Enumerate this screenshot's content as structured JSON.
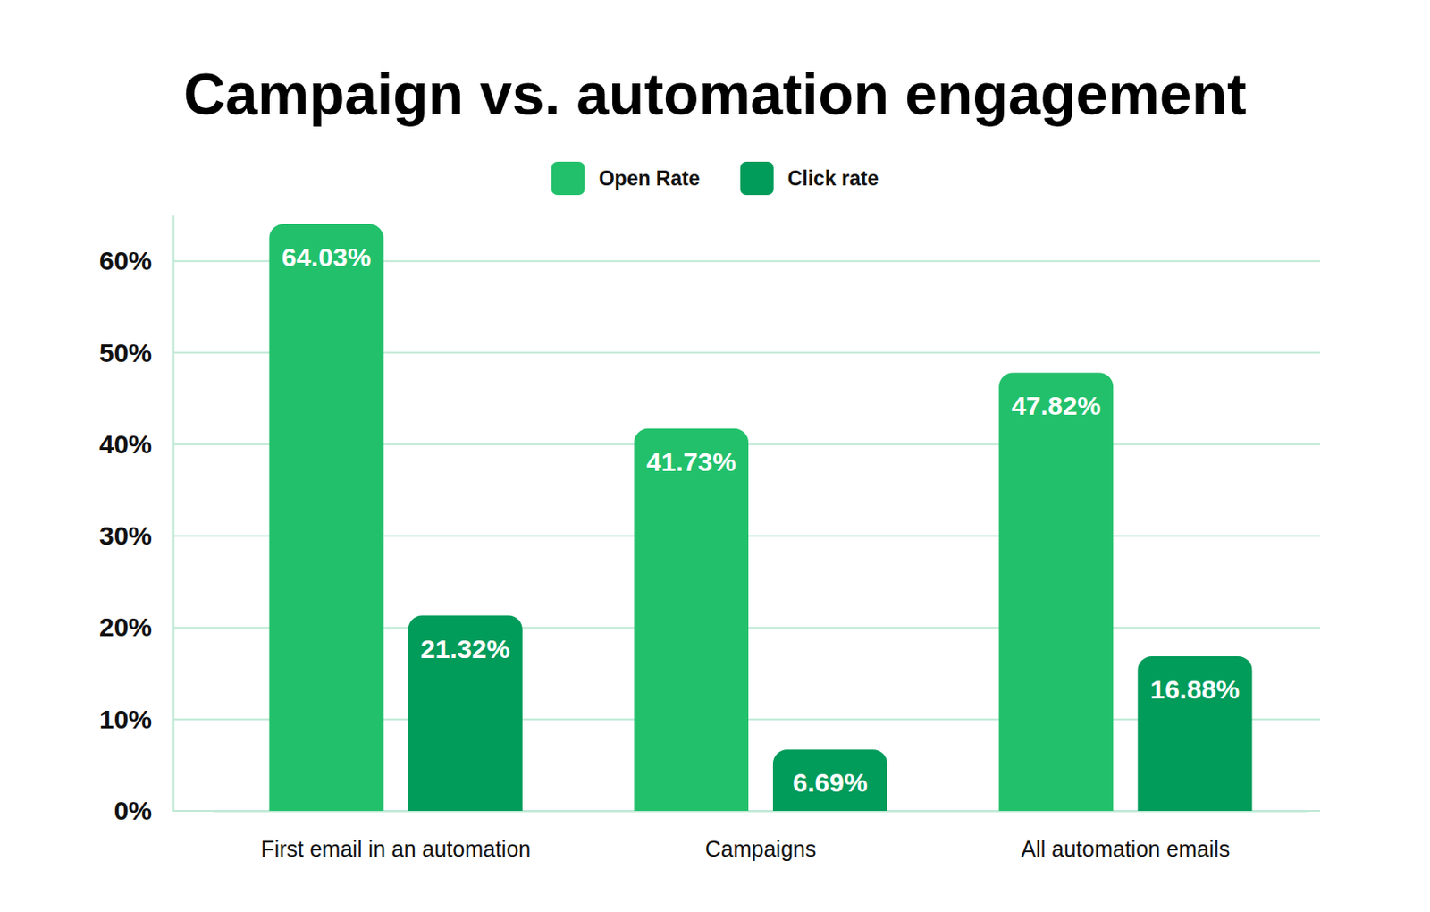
{
  "chart_data": {
    "type": "bar",
    "title": "Campaign vs. automation engagement",
    "categories": [
      "First email in an automation",
      "Campaigns",
      "All automation emails"
    ],
    "series": [
      {
        "name": "Open Rate",
        "color": "#22c06b",
        "values": [
          64.03,
          41.73,
          47.82
        ],
        "value_labels": [
          "64.03%",
          "41.73%",
          "47.82%"
        ]
      },
      {
        "name": "Click rate",
        "color": "#019b5a",
        "values": [
          21.32,
          6.69,
          16.88
        ],
        "value_labels": [
          "21.32%",
          "6.69%",
          "16.88%"
        ]
      }
    ],
    "ylim": [
      0,
      65
    ],
    "yticks": [
      {
        "value": 0,
        "label": "0%"
      },
      {
        "value": 10,
        "label": "10%"
      },
      {
        "value": 20,
        "label": "20%"
      },
      {
        "value": 30,
        "label": "30%"
      },
      {
        "value": 40,
        "label": "40%"
      },
      {
        "value": 50,
        "label": "50%"
      },
      {
        "value": 60,
        "label": "60%"
      }
    ],
    "grid": true,
    "legend": "top",
    "data_labels": true
  }
}
